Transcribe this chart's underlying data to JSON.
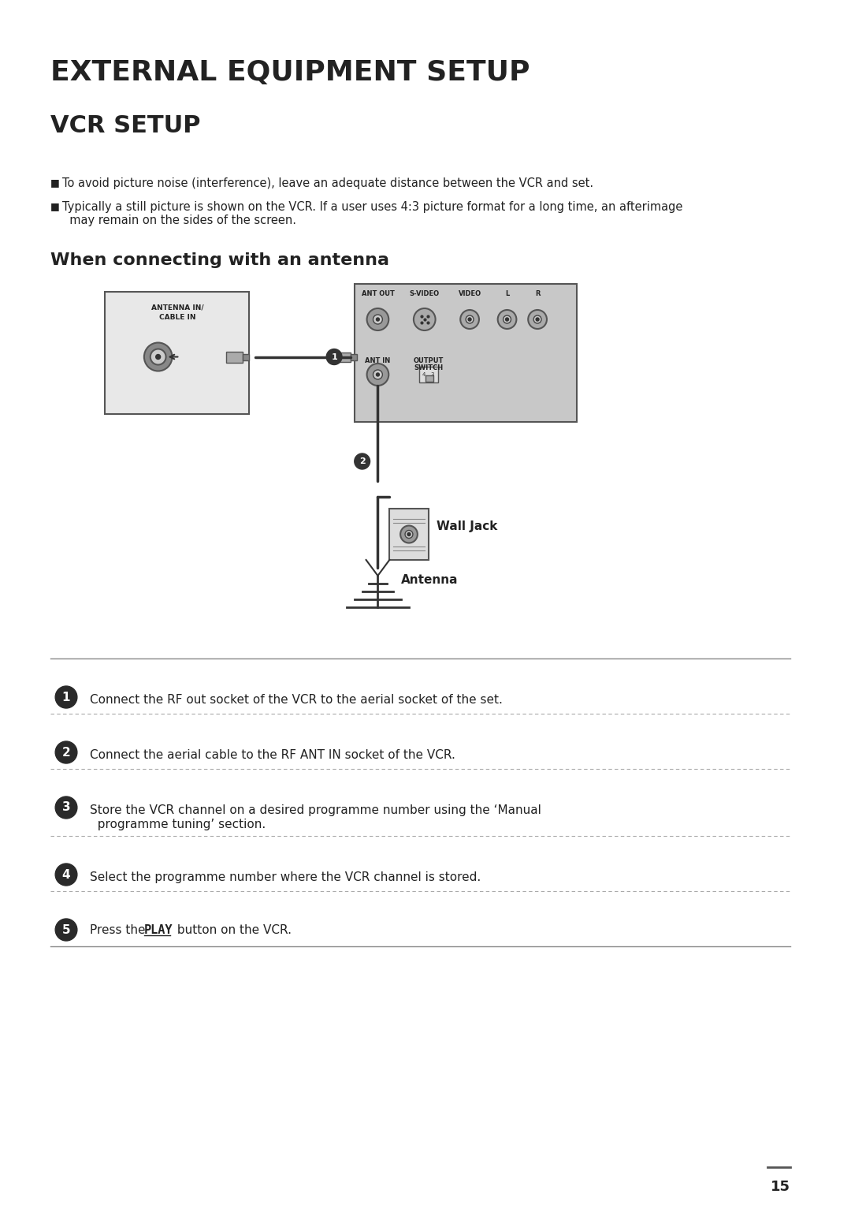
{
  "title1": "EXTERNAL EQUIPMENT SETUP",
  "title2": "VCR SETUP",
  "subtitle": "When connecting with an antenna",
  "bullet1": "To avoid picture noise (interference), leave an adequate distance between the VCR and set.",
  "bullet2": "Typically a still picture is shown on the VCR. If a user uses 4:3 picture format for a long time, an afterimage\n  may remain on the sides of the screen.",
  "step1": "Connect the RF out socket of the VCR to the aerial socket of the set.",
  "step2": "Connect the aerial cable to the RF ANT IN socket of the VCR.",
  "step3": "Store the VCR channel on a desired programme number using the ‘Manual\n  programme tuning’ section.",
  "step4": "Select the programme number where the VCR channel is stored.",
  "step5": "Press the PLAY button on the VCR.",
  "page_num": "15",
  "bg_color": "#ffffff",
  "text_color": "#333333",
  "dark_color": "#222222",
  "gray_color": "#aaaaaa",
  "light_gray": "#cccccc",
  "box_fill": "#d4d4d4"
}
